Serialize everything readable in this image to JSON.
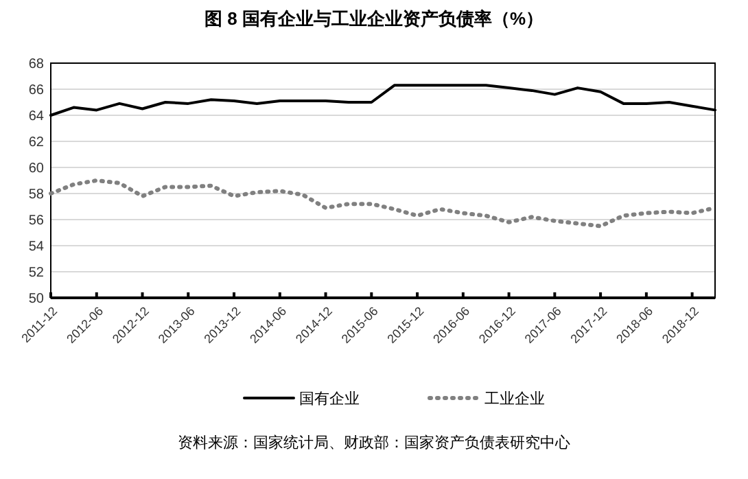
{
  "chart_data": {
    "type": "line",
    "title": "图 8  国有企业与工业企业资产负债率（%）",
    "categories": [
      "2011-12",
      null,
      "2012-06",
      null,
      "2012-12",
      null,
      "2013-06",
      null,
      "2013-12",
      null,
      "2014-06",
      null,
      "2014-12",
      null,
      "2015-06",
      null,
      "2015-12",
      null,
      "2016-06",
      null,
      "2016-12",
      null,
      "2017-06",
      null,
      "2017-12",
      null,
      "2018-06",
      null,
      "2018-12",
      null
    ],
    "series": [
      {
        "name": "国有企业",
        "color": "#000000",
        "line_style": "solid",
        "values": [
          64.0,
          64.6,
          64.4,
          64.9,
          64.5,
          65.0,
          64.9,
          65.2,
          65.1,
          64.9,
          65.1,
          65.1,
          65.1,
          65.0,
          65.0,
          66.3,
          66.3,
          66.3,
          66.3,
          66.3,
          66.1,
          65.9,
          65.6,
          66.1,
          65.8,
          64.9,
          64.9,
          65.0,
          64.7,
          64.4
        ]
      },
      {
        "name": "工业企业",
        "color": "#808080",
        "line_style": "dotted",
        "values": [
          58.0,
          58.7,
          59.0,
          58.8,
          57.8,
          58.5,
          58.5,
          58.6,
          57.8,
          58.1,
          58.2,
          57.9,
          56.9,
          57.2,
          57.2,
          56.8,
          56.3,
          56.8,
          56.5,
          56.3,
          55.8,
          56.2,
          55.9,
          55.7,
          55.5,
          56.3,
          56.5,
          56.6,
          56.5,
          56.9
        ]
      }
    ],
    "ylim": [
      50,
      68
    ],
    "yticks": [
      50,
      52,
      54,
      56,
      58,
      60,
      62,
      64,
      66,
      68
    ],
    "grid": "y",
    "legend": "bottom",
    "annotations": [
      "资料来源：国家统计局、财政部：国家资产负债表研究中心"
    ]
  }
}
